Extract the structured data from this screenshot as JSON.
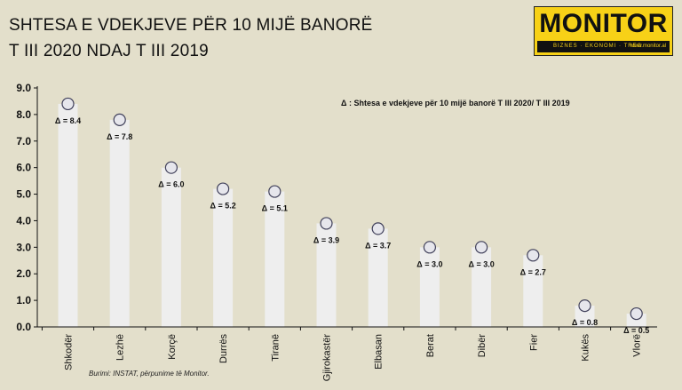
{
  "title": {
    "line1": "SHTESA E VDEKJEVE PËR 10 MIJË BANORË",
    "line2": "T III 2020 NDAJ T III 2019"
  },
  "logo": {
    "name": "MONITOR",
    "tagline": "BIZNES · EKONOMI · TREG",
    "site": "www.monitor.al"
  },
  "source": "Burimi: INSTAT, përpunime të Monitor.",
  "chart_data": {
    "type": "bar",
    "title": "SHTESA E VDEKJEVE PËR 10 MIJË BANORË T III 2020 NDAJ T III 2019",
    "annotation": "Δ : Shtesa e vdekjeve për 10 mijë banorë T III 2020/ T III 2019",
    "categories": [
      "Shkodër",
      "Lezhë",
      "Korçë",
      "Durrës",
      "Tiranë",
      "Gjirokastër",
      "Elbasan",
      "Berat",
      "Dibër",
      "Fier",
      "Kukës",
      "Vlorë"
    ],
    "values": [
      8.4,
      7.8,
      6.0,
      5.2,
      5.1,
      3.9,
      3.7,
      3.0,
      3.0,
      2.7,
      0.8,
      0.5
    ],
    "data_labels": [
      "Δ = 8.4",
      "Δ = 7.8",
      "Δ = 6.0",
      "Δ = 5.2",
      "Δ = 5.1",
      "Δ = 3.9",
      "Δ = 3.7",
      "Δ = 3.0",
      "Δ = 3.0",
      "Δ = 2.7",
      "Δ = 0.8",
      "Δ = 0.5"
    ],
    "y_ticks": [
      "0.0",
      "1.0",
      "2.0",
      "3.0",
      "4.0",
      "5.0",
      "6.0",
      "7.0",
      "8.0",
      "9.0"
    ],
    "ylim": [
      0,
      9
    ],
    "xlabel": "",
    "ylabel": "",
    "grid": false,
    "legend": "none",
    "colors": {
      "bar": "#eeeeee",
      "marker_fill": "#e6e6ec",
      "marker_stroke": "#40405a",
      "axis": "#111111",
      "background": "#e3dfcb"
    }
  }
}
